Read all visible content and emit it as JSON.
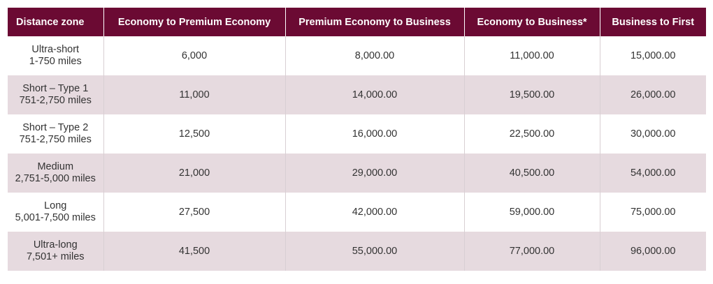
{
  "table": {
    "headers": [
      "Distance zone",
      "Economy to Premium Economy",
      "Premium Economy to Business",
      "Economy to Business*",
      "Business to First"
    ],
    "rows": [
      {
        "zone": "Ultra-short",
        "range": "1-750 miles",
        "values": [
          "6,000",
          "8,000.00",
          "11,000.00",
          "15,000.00"
        ]
      },
      {
        "zone": "Short – Type 1",
        "range": "751-2,750 miles",
        "values": [
          "11,000",
          "14,000.00",
          "19,500.00",
          "26,000.00"
        ]
      },
      {
        "zone": "Short – Type 2",
        "range": "751-2,750 miles",
        "values": [
          "12,500",
          "16,000.00",
          "22,500.00",
          "30,000.00"
        ]
      },
      {
        "zone": "Medium",
        "range": "2,751-5,000 miles",
        "values": [
          "21,000",
          "29,000.00",
          "40,500.00",
          "54,000.00"
        ]
      },
      {
        "zone": "Long",
        "range": "5,001-7,500 miles",
        "values": [
          "27,500",
          "42,000.00",
          "59,000.00",
          "75,000.00"
        ]
      },
      {
        "zone": "Ultra-long",
        "range": "7,501+ miles",
        "values": [
          "41,500",
          "55,000.00",
          "77,000.00",
          "96,000.00"
        ]
      }
    ]
  },
  "colors": {
    "header_bg": "#6b0a33",
    "header_text": "#ffffff",
    "shaded_row": "#e6dadf",
    "plain_row": "#ffffff",
    "body_text": "#333333"
  }
}
